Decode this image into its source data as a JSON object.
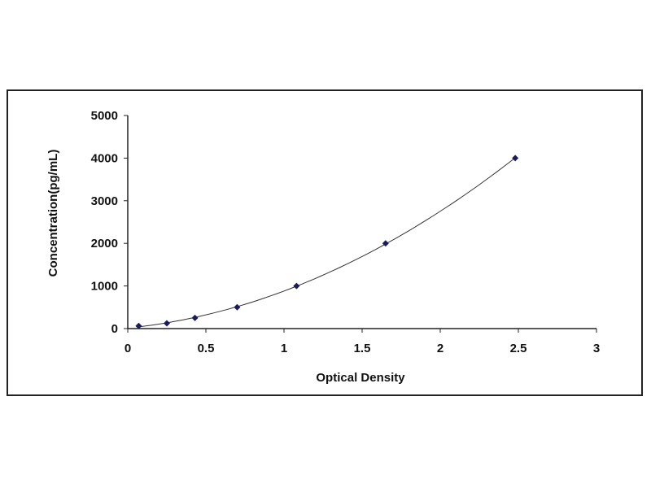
{
  "chart_data": {
    "type": "scatter",
    "title": "",
    "xlabel": "Optical Density",
    "ylabel": "Concentration(pg/mL)",
    "xlim": [
      0,
      3
    ],
    "ylim": [
      0,
      5000
    ],
    "xticks": [
      "0",
      "0.5",
      "1",
      "1.5",
      "2",
      "2.5",
      "3"
    ],
    "yticks": [
      "0",
      "1000",
      "2000",
      "3000",
      "4000",
      "5000"
    ],
    "grid": false,
    "trendline": "smooth polynomial fit",
    "colors": {
      "points": "#1a1a5e",
      "line": "#333333"
    },
    "points": [
      {
        "x": 0.07,
        "y": 62.5
      },
      {
        "x": 0.25,
        "y": 125
      },
      {
        "x": 0.43,
        "y": 250
      },
      {
        "x": 0.7,
        "y": 500
      },
      {
        "x": 1.08,
        "y": 1000
      },
      {
        "x": 1.65,
        "y": 2000
      },
      {
        "x": 2.48,
        "y": 4000
      }
    ]
  }
}
